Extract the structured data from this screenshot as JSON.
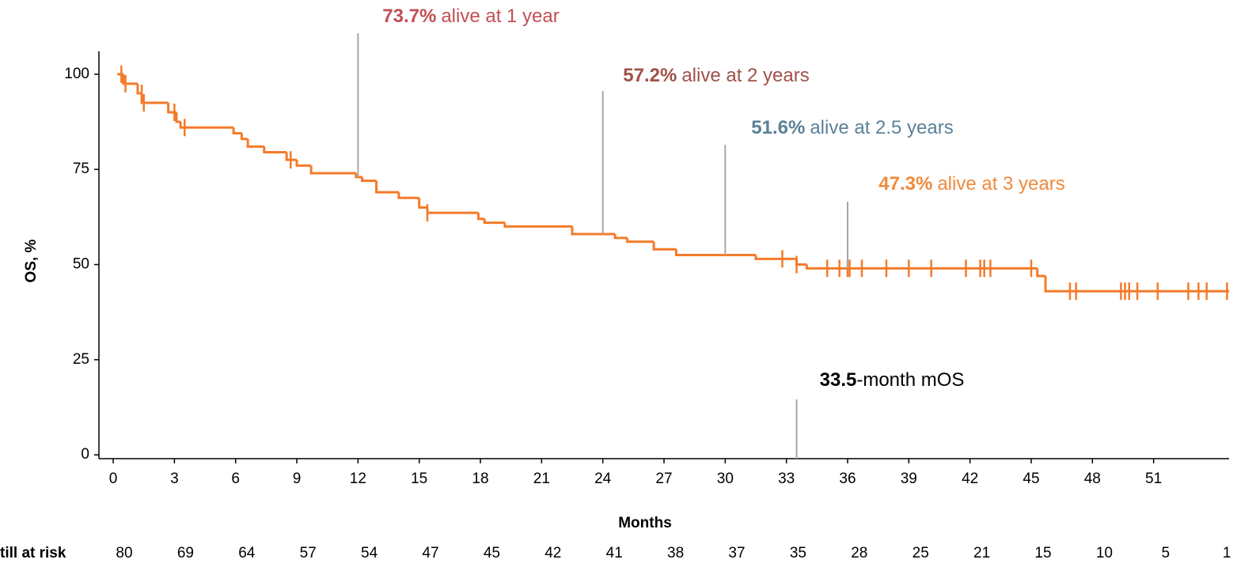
{
  "chart_data": {
    "type": "line",
    "step": true,
    "ylabel": "OS, %",
    "xlabel": "Months",
    "color": "#f47b2a",
    "xlim": [
      -0.7,
      54.7
    ],
    "ylim": [
      -1,
      106
    ],
    "xticks": [
      0,
      3,
      6,
      9,
      12,
      15,
      18,
      21,
      24,
      27,
      30,
      33,
      36,
      39,
      42,
      45,
      48,
      51
    ],
    "yticks": [
      0,
      25,
      50,
      75,
      100
    ],
    "x": [
      0.2,
      0.5,
      1.2,
      1.4,
      2.7,
      3.1,
      3.3,
      5.9,
      6.3,
      6.6,
      7.4,
      8.5,
      9.0,
      9.7,
      11.9,
      12.2,
      12.9,
      14.0,
      15.0,
      15.4,
      17.9,
      18.2,
      19.2,
      22.5,
      24.6,
      25.2,
      26.5,
      27.6,
      31.5,
      33.5,
      34.0,
      45.3,
      45.7,
      54.7
    ],
    "values": [
      100,
      97.5,
      95,
      92.5,
      90,
      87.5,
      86,
      84.5,
      83,
      81,
      79.5,
      77.5,
      76,
      74,
      73,
      72,
      69,
      67.5,
      65,
      63.6,
      62,
      61,
      60,
      58,
      57,
      56,
      54,
      52.5,
      51.5,
      50,
      49,
      47,
      43,
      43
    ],
    "censored": {
      "x": [
        0.4,
        0.6,
        1.4,
        1.5,
        3.0,
        3.5,
        8.7,
        15.4,
        32.8,
        33.5,
        35.0,
        35.6,
        36.0,
        36.1,
        36.7,
        37.9,
        39.0,
        40.1,
        41.8,
        42.5,
        42.7,
        43.0,
        45.0,
        46.9,
        47.2,
        49.4,
        49.6,
        49.8,
        50.2,
        51.2,
        52.7,
        53.2,
        53.6,
        54.6
      ],
      "values": [
        100,
        97.5,
        95,
        92.5,
        90,
        86,
        77.5,
        63.6,
        51.5,
        50,
        49,
        49,
        49,
        49,
        49,
        49,
        49,
        49,
        49,
        49,
        49,
        49,
        49,
        43,
        43,
        43,
        43,
        43,
        43,
        43,
        43,
        43,
        43,
        43
      ]
    },
    "annotations": [
      {
        "bold": "73.7%",
        "text": "alive at 1 year",
        "x": 12,
        "color": "#c24f55"
      },
      {
        "bold": "57.2%",
        "text": "alive at 2 years",
        "x": 24,
        "color": "#a0504a"
      },
      {
        "bold": "51.6%",
        "text": "alive at 2.5 years",
        "x": 30,
        "color": "#5b8198"
      },
      {
        "bold": "47.3%",
        "text": "alive at 3 years",
        "x": 36,
        "color": "#f08a3c"
      },
      {
        "bold": "33.5",
        "text": "-month mOS",
        "x": 33.5,
        "color": "#000000"
      }
    ],
    "at_risk_label": "till at risk",
    "at_risk": [
      80,
      69,
      64,
      57,
      54,
      47,
      45,
      42,
      41,
      38,
      37,
      35,
      28,
      25,
      21,
      15,
      10,
      5,
      1
    ]
  }
}
